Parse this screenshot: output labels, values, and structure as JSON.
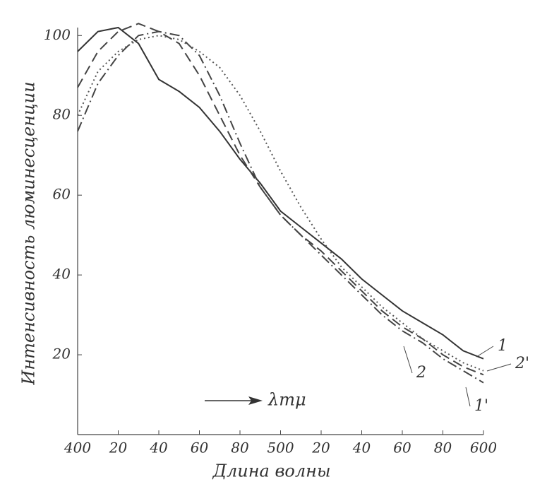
{
  "chart_data": {
    "type": "line",
    "xlabel": "Длина волны",
    "ylabel": "Интенсивность люминесценции",
    "annotation": "λmμ",
    "x": [
      400,
      410,
      420,
      430,
      440,
      450,
      460,
      470,
      480,
      490,
      500,
      510,
      520,
      530,
      540,
      550,
      560,
      570,
      580,
      590,
      600
    ],
    "xlim": [
      400,
      600
    ],
    "xticks": [
      {
        "value": 400,
        "label": "400"
      },
      {
        "value": 420,
        "label": "20"
      },
      {
        "value": 440,
        "label": "40"
      },
      {
        "value": 460,
        "label": "60"
      },
      {
        "value": 480,
        "label": "80"
      },
      {
        "value": 500,
        "label": "500"
      },
      {
        "value": 520,
        "label": "20"
      },
      {
        "value": 540,
        "label": "40"
      },
      {
        "value": 560,
        "label": "60"
      },
      {
        "value": 580,
        "label": "80"
      },
      {
        "value": 600,
        "label": "600"
      }
    ],
    "ylim": [
      0,
      102
    ],
    "yticks": [
      20,
      40,
      60,
      80,
      100
    ],
    "series": [
      {
        "name": "1",
        "color": "#333333",
        "dash": "solid",
        "values": [
          96,
          101,
          102,
          98,
          89,
          86,
          82,
          76,
          69,
          63,
          56,
          52,
          48,
          44,
          39,
          35,
          31,
          28,
          25,
          21,
          19
        ]
      },
      {
        "name": "2",
        "color": "#444444",
        "dash": "dashed",
        "values": [
          87,
          96,
          101,
          103,
          101,
          98,
          90,
          80,
          70,
          62,
          55,
          50,
          46,
          41,
          36,
          31,
          27,
          24,
          20,
          17,
          15
        ]
      },
      {
        "name": "1'",
        "color": "#444444",
        "dash": "dashdot",
        "values": [
          76,
          88,
          95,
          100,
          101,
          100,
          95,
          85,
          73,
          62,
          55,
          50,
          45,
          40,
          35,
          30,
          26,
          23,
          19,
          16,
          13
        ]
      },
      {
        "name": "2'",
        "color": "#555555",
        "dash": "dotted",
        "values": [
          80,
          91,
          96,
          99,
          100,
          99,
          96,
          92,
          85,
          76,
          66,
          57,
          49,
          42,
          37,
          32,
          28,
          24,
          21,
          18,
          16
        ]
      }
    ]
  }
}
